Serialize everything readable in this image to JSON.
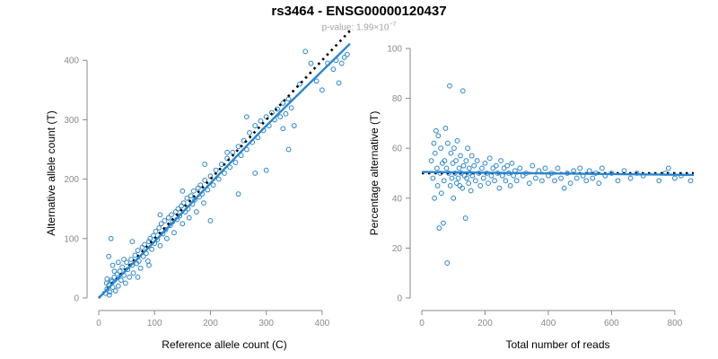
{
  "header": {
    "title": "rs3464 - ENSG00000120437",
    "pvalue_prefix": "p-value: 1.99×10",
    "pvalue_exponent": "−7"
  },
  "colors": {
    "points": "#2a86d1",
    "fit": "#2a86d1",
    "reference": "#000000",
    "axis": "#8a8a8a"
  },
  "chart_data": [
    {
      "type": "scatter",
      "xlabel": "Reference allele count (C)",
      "ylabel": "Alternative allele count (T)",
      "xlim": [
        0,
        450
      ],
      "ylim": [
        0,
        420
      ],
      "xticks": [
        0,
        100,
        200,
        300,
        400
      ],
      "yticks": [
        0,
        100,
        200,
        300,
        400
      ],
      "grid": false,
      "points": [
        [
          12,
          8
        ],
        [
          15,
          15
        ],
        [
          18,
          22
        ],
        [
          20,
          10
        ],
        [
          22,
          30
        ],
        [
          25,
          18
        ],
        [
          14,
          25
        ],
        [
          28,
          35
        ],
        [
          30,
          12
        ],
        [
          33,
          40
        ],
        [
          19,
          5
        ],
        [
          24,
          28
        ],
        [
          35,
          20
        ],
        [
          38,
          45
        ],
        [
          40,
          30
        ],
        [
          42,
          52
        ],
        [
          45,
          38
        ],
        [
          48,
          25
        ],
        [
          50,
          60
        ],
        [
          52,
          48
        ],
        [
          55,
          35
        ],
        [
          58,
          65
        ],
        [
          60,
          55
        ],
        [
          62,
          42
        ],
        [
          65,
          72
        ],
        [
          68,
          58
        ],
        [
          70,
          80
        ],
        [
          72,
          62
        ],
        [
          75,
          50
        ],
        [
          78,
          85
        ],
        [
          80,
          70
        ],
        [
          82,
          90
        ],
        [
          85,
          75
        ],
        [
          88,
          62
        ],
        [
          90,
          95
        ],
        [
          92,
          100
        ],
        [
          95,
          82
        ],
        [
          98,
          105
        ],
        [
          100,
          92
        ],
        [
          102,
          112
        ],
        [
          105,
          98
        ],
        [
          108,
          118
        ],
        [
          110,
          88
        ],
        [
          112,
          125
        ],
        [
          115,
          108
        ],
        [
          118,
          130
        ],
        [
          120,
          115
        ],
        [
          122,
          100
        ],
        [
          125,
          135
        ],
        [
          128,
          122
        ],
        [
          130,
          140
        ],
        [
          132,
          128
        ],
        [
          135,
          110
        ],
        [
          138,
          145
        ],
        [
          140,
          132
        ],
        [
          142,
          150
        ],
        [
          145,
          138
        ],
        [
          148,
          155
        ],
        [
          150,
          125
        ],
        [
          152,
          160
        ],
        [
          155,
          145
        ],
        [
          158,
          168
        ],
        [
          160,
          150
        ],
        [
          162,
          135
        ],
        [
          165,
          172
        ],
        [
          168,
          158
        ],
        [
          170,
          180
        ],
        [
          172,
          165
        ],
        [
          175,
          145
        ],
        [
          178,
          185
        ],
        [
          180,
          170
        ],
        [
          182,
          190
        ],
        [
          185,
          175
        ],
        [
          188,
          160
        ],
        [
          190,
          198
        ],
        [
          195,
          182
        ],
        [
          200,
          205
        ],
        [
          205,
          190
        ],
        [
          210,
          215
        ],
        [
          215,
          200
        ],
        [
          220,
          225
        ],
        [
          225,
          210
        ],
        [
          230,
          235
        ],
        [
          235,
          220
        ],
        [
          240,
          245
        ],
        [
          245,
          228
        ],
        [
          250,
          255
        ],
        [
          255,
          240
        ],
        [
          260,
          265
        ],
        [
          265,
          250
        ],
        [
          270,
          278
        ],
        [
          275,
          262
        ],
        [
          280,
          290
        ],
        [
          285,
          270
        ],
        [
          290,
          298
        ],
        [
          295,
          282
        ],
        [
          300,
          305
        ],
        [
          305,
          290
        ],
        [
          310,
          312
        ],
        [
          315,
          300
        ],
        [
          320,
          318
        ],
        [
          325,
          305
        ],
        [
          330,
          328
        ],
        [
          335,
          310
        ],
        [
          340,
          335
        ],
        [
          345,
          320
        ],
        [
          350,
          290
        ],
        [
          360,
          360
        ],
        [
          370,
          415
        ],
        [
          380,
          395
        ],
        [
          390,
          365
        ],
        [
          400,
          350
        ],
        [
          410,
          395
        ],
        [
          420,
          385
        ],
        [
          425,
          400
        ],
        [
          430,
          362
        ],
        [
          435,
          395
        ],
        [
          440,
          405
        ],
        [
          445,
          410
        ],
        [
          300,
          215
        ],
        [
          280,
          210
        ],
        [
          250,
          175
        ],
        [
          230,
          245
        ],
        [
          265,
          305
        ],
        [
          330,
          285
        ],
        [
          340,
          250
        ],
        [
          200,
          130
        ],
        [
          190,
          225
        ],
        [
          150,
          180
        ],
        [
          110,
          140
        ],
        [
          90,
          55
        ],
        [
          70,
          35
        ],
        [
          60,
          95
        ],
        [
          45,
          65
        ],
        [
          35,
          60
        ],
        [
          28,
          45
        ],
        [
          22,
          100
        ],
        [
          15,
          32
        ],
        [
          18,
          70
        ],
        [
          25,
          55
        ]
      ],
      "fit_line": [
        [
          0,
          0
        ],
        [
          100,
          95
        ],
        [
          200,
          193
        ],
        [
          300,
          290
        ],
        [
          450,
          428
        ]
      ],
      "reference_line": [
        [
          0,
          0
        ],
        [
          100,
          100
        ],
        [
          200,
          200
        ],
        [
          300,
          300
        ],
        [
          450,
          450
        ]
      ]
    },
    {
      "type": "scatter",
      "xlabel": "Total number of reads",
      "ylabel": "Percentage alternative (T)",
      "xlim": [
        0,
        860
      ],
      "ylim": [
        0,
        100
      ],
      "xticks": [
        0,
        200,
        400,
        600,
        800
      ],
      "yticks": [
        0,
        20,
        40,
        60,
        80,
        100
      ],
      "grid": false,
      "points": [
        [
          30,
          55
        ],
        [
          35,
          48
        ],
        [
          38,
          62
        ],
        [
          40,
          40
        ],
        [
          42,
          58
        ],
        [
          45,
          67
        ],
        [
          48,
          52
        ],
        [
          50,
          45
        ],
        [
          52,
          65
        ],
        [
          55,
          28
        ],
        [
          58,
          50
        ],
        [
          60,
          60
        ],
        [
          62,
          42
        ],
        [
          65,
          54
        ],
        [
          68,
          30
        ],
        [
          70,
          47
        ],
        [
          72,
          55
        ],
        [
          75,
          68
        ],
        [
          78,
          52
        ],
        [
          80,
          14
        ],
        [
          82,
          62
        ],
        [
          85,
          50
        ],
        [
          88,
          85
        ],
        [
          90,
          45
        ],
        [
          92,
          58
        ],
        [
          95,
          48
        ],
        [
          98,
          54
        ],
        [
          100,
          40
        ],
        [
          102,
          60
        ],
        [
          105,
          50
        ],
        [
          108,
          55
        ],
        [
          110,
          46
        ],
        [
          112,
          63
        ],
        [
          115,
          48
        ],
        [
          118,
          52
        ],
        [
          120,
          45
        ],
        [
          122,
          57
        ],
        [
          125,
          50
        ],
        [
          128,
          44
        ],
        [
          130,
          83
        ],
        [
          132,
          53
        ],
        [
          135,
          49
        ],
        [
          138,
          32
        ],
        [
          140,
          55
        ],
        [
          142,
          48
        ],
        [
          145,
          60
        ],
        [
          148,
          46
        ],
        [
          150,
          52
        ],
        [
          152,
          50
        ],
        [
          155,
          43
        ],
        [
          158,
          57
        ],
        [
          160,
          49
        ],
        [
          165,
          53
        ],
        [
          170,
          47
        ],
        [
          175,
          55
        ],
        [
          180,
          50
        ],
        [
          185,
          45
        ],
        [
          190,
          52
        ],
        [
          195,
          48
        ],
        [
          200,
          54
        ],
        [
          205,
          50
        ],
        [
          210,
          46
        ],
        [
          215,
          56
        ],
        [
          220,
          49
        ],
        [
          225,
          52
        ],
        [
          230,
          47
        ],
        [
          235,
          53
        ],
        [
          240,
          50
        ],
        [
          245,
          44
        ],
        [
          250,
          55
        ],
        [
          255,
          49
        ],
        [
          260,
          52
        ],
        [
          265,
          47
        ],
        [
          270,
          53
        ],
        [
          275,
          50
        ],
        [
          280,
          45
        ],
        [
          285,
          54
        ],
        [
          290,
          49
        ],
        [
          295,
          51
        ],
        [
          300,
          47
        ],
        [
          310,
          52
        ],
        [
          320,
          49
        ],
        [
          330,
          50
        ],
        [
          340,
          46
        ],
        [
          350,
          53
        ],
        [
          360,
          48
        ],
        [
          370,
          51
        ],
        [
          380,
          47
        ],
        [
          390,
          52
        ],
        [
          400,
          49
        ],
        [
          410,
          50
        ],
        [
          420,
          47
        ],
        [
          430,
          52
        ],
        [
          440,
          48
        ],
        [
          450,
          44
        ],
        [
          460,
          50
        ],
        [
          470,
          46
        ],
        [
          480,
          51
        ],
        [
          490,
          48
        ],
        [
          500,
          52
        ],
        [
          510,
          49
        ],
        [
          520,
          47
        ],
        [
          530,
          51
        ],
        [
          540,
          48
        ],
        [
          550,
          50
        ],
        [
          560,
          46
        ],
        [
          570,
          52
        ],
        [
          580,
          49
        ],
        [
          600,
          50
        ],
        [
          620,
          47
        ],
        [
          640,
          51
        ],
        [
          660,
          48
        ],
        [
          680,
          50
        ],
        [
          700,
          49
        ],
        [
          750,
          47
        ],
        [
          770,
          50
        ],
        [
          780,
          52
        ],
        [
          800,
          48
        ],
        [
          820,
          49
        ],
        [
          850,
          47
        ]
      ],
      "fit_line": [
        [
          0,
          50.5
        ],
        [
          860,
          49.3
        ]
      ],
      "reference_line": [
        [
          0,
          50
        ],
        [
          860,
          50
        ]
      ]
    }
  ]
}
